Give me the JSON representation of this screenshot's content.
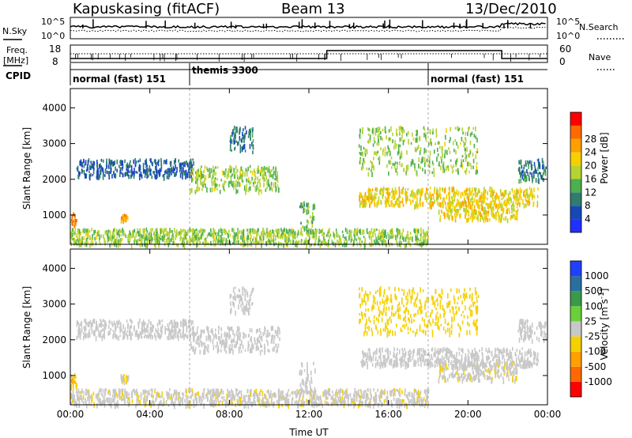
{
  "header": {
    "station": "Kapuskasing (fitACF)",
    "beam": "Beam 13",
    "date": "13/Dec/2010"
  },
  "noise_panel": {
    "left_label": "N.Sky",
    "right_label": "N.Search",
    "left_ticks": [
      "10^5",
      "10^0"
    ],
    "right_ticks": [
      "10^5",
      "10^0"
    ]
  },
  "freq_panel": {
    "left_label_line1": "Freq.",
    "left_label_line2": "[MHz]",
    "right_label": "Nave",
    "left_ticks": [
      "18",
      "8"
    ],
    "right_ticks": [
      "60",
      "0"
    ]
  },
  "cpid": {
    "label": "CPID",
    "modes": [
      {
        "name": "normal (fast) 151",
        "start_hour": 0
      },
      {
        "name": "themis 3300",
        "start_hour": 6
      },
      {
        "name": "normal (fast) 151",
        "start_hour": 18
      }
    ]
  },
  "chart_data": [
    {
      "type": "heatmap",
      "quantity": "Power",
      "ylabel": "Slant Range [km]",
      "xlabel": "Time UT",
      "x_ticks": [
        "00:00",
        "04:00",
        "08:00",
        "12:00",
        "16:00",
        "20:00",
        "00:00"
      ],
      "x_range_hours": [
        0,
        24
      ],
      "y_ticks": [
        1000,
        2000,
        3000,
        4000
      ],
      "ylim": [
        180,
        4540
      ],
      "colorbar": {
        "label": "Power [dB]",
        "ticks": [
          "4",
          "8",
          "12",
          "16",
          "20",
          "24",
          "28"
        ],
        "colors": [
          "#2030ff",
          "#1848b8",
          "#2e7d6e",
          "#4caf50",
          "#b5d334",
          "#f5d000",
          "#ffa000",
          "#ff6a00",
          "#ff0000"
        ],
        "range": [
          0,
          30
        ]
      },
      "echo_regions": [
        {
          "t": [
            0.0,
            0.3
          ],
          "r": [
            700,
            1100
          ],
          "v": 24
        },
        {
          "t": [
            2.5,
            2.9
          ],
          "r": [
            850,
            1050
          ],
          "v": 22
        },
        {
          "t": [
            0.3,
            6.2
          ],
          "r": [
            2100,
            2600
          ],
          "v": 6
        },
        {
          "t": [
            6.0,
            10.5
          ],
          "r": [
            1700,
            2400
          ],
          "v": 14
        },
        {
          "t": [
            8.0,
            9.2
          ],
          "r": [
            2800,
            3500
          ],
          "v": 8
        },
        {
          "t": [
            11.5,
            12.3
          ],
          "r": [
            500,
            1400
          ],
          "v": 12
        },
        {
          "t": [
            14.5,
            23.5
          ],
          "r": [
            1300,
            1800
          ],
          "v": 18
        },
        {
          "t": [
            14.5,
            20.5
          ],
          "r": [
            2200,
            3500
          ],
          "v": 14
        },
        {
          "t": [
            18.5,
            22.5
          ],
          "r": [
            900,
            1400
          ],
          "v": 18
        },
        {
          "t": [
            22.5,
            23.9
          ],
          "r": [
            2000,
            2600
          ],
          "v": 8
        },
        {
          "t": [
            0.0,
            18.0
          ],
          "r": [
            200,
            650
          ],
          "v": 14
        }
      ]
    },
    {
      "type": "heatmap",
      "quantity": "Velocity",
      "ylabel": "Slant Range [km]",
      "xlabel": "Time UT",
      "x_ticks": [
        "00:00",
        "04:00",
        "08:00",
        "12:00",
        "16:00",
        "20:00",
        "00:00"
      ],
      "x_range_hours": [
        0,
        24
      ],
      "y_ticks": [
        1000,
        2000,
        3000,
        4000
      ],
      "ylim": [
        180,
        4540
      ],
      "colorbar": {
        "label": "Velocity [m s^-1]",
        "label_main": "Velocity",
        "label_unit": "[m s",
        "label_sup": "-1",
        "label_end": "]",
        "ticks": [
          "1000",
          "500",
          "100",
          "25",
          "-25",
          "-100",
          "-500",
          "-1000"
        ],
        "colors": [
          "#2040ff",
          "#2a6fa0",
          "#3a9a4a",
          "#6ad03a",
          "#c8c8c8",
          "#f5d000",
          "#ffa000",
          "#ff6a00",
          "#ff0000"
        ],
        "range": [
          -1000,
          1000
        ]
      },
      "echo_regions": [
        {
          "t": [
            0.0,
            0.3
          ],
          "r": [
            700,
            1100
          ],
          "v": -300
        },
        {
          "t": [
            2.5,
            2.9
          ],
          "r": [
            850,
            1050
          ],
          "v": -80
        },
        {
          "t": [
            0.3,
            6.2
          ],
          "r": [
            2100,
            2600
          ],
          "v": 0
        },
        {
          "t": [
            6.0,
            10.5
          ],
          "r": [
            1700,
            2400
          ],
          "v": 0
        },
        {
          "t": [
            8.0,
            9.2
          ],
          "r": [
            2800,
            3500
          ],
          "v": 0
        },
        {
          "t": [
            11.5,
            12.3
          ],
          "r": [
            500,
            1400
          ],
          "v": 0
        },
        {
          "t": [
            14.5,
            23.5
          ],
          "r": [
            1300,
            1800
          ],
          "v": 0
        },
        {
          "t": [
            14.5,
            20.5
          ],
          "r": [
            2200,
            3500
          ],
          "v": -200
        },
        {
          "t": [
            18.5,
            22.5
          ],
          "r": [
            900,
            1400
          ],
          "v": -60
        },
        {
          "t": [
            22.5,
            23.9
          ],
          "r": [
            2000,
            2600
          ],
          "v": 0
        },
        {
          "t": [
            0.0,
            18.0
          ],
          "r": [
            200,
            650
          ],
          "v": -60
        }
      ]
    }
  ]
}
